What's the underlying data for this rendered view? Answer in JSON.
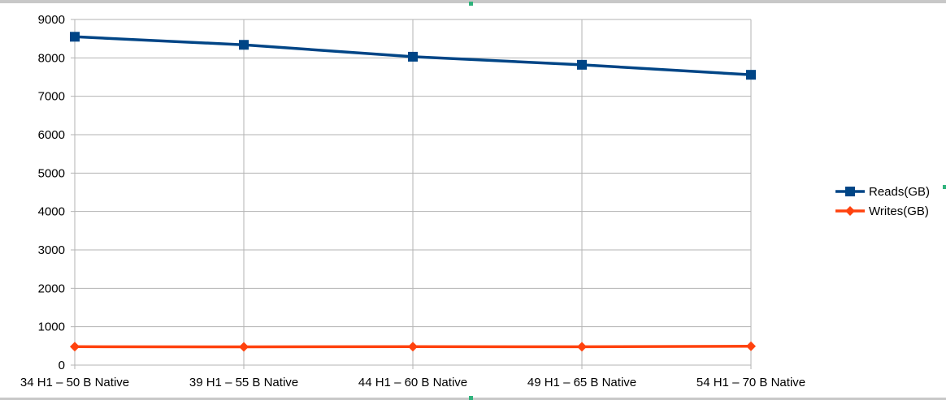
{
  "chart_data": {
    "type": "line",
    "categories": [
      "34 H1 – 50 B Native",
      "39 H1 – 55 B Native",
      "44 H1 – 60 B Native",
      "49 H1 – 65 B Native",
      "54 H1 – 70 B Native"
    ],
    "series": [
      {
        "name": "Reads(GB)",
        "values": [
          8550,
          8340,
          8030,
          7820,
          7560
        ],
        "color": "#004586",
        "marker": "square"
      },
      {
        "name": "Writes(GB)",
        "values": [
          480,
          475,
          480,
          478,
          490
        ],
        "color": "#ff420e",
        "marker": "diamond"
      }
    ],
    "yticks": [
      "0",
      "1000",
      "2000",
      "3000",
      "4000",
      "5000",
      "6000",
      "7000",
      "8000",
      "9000"
    ],
    "ylim": [
      0,
      9000
    ],
    "ystep": 1000,
    "grid": true,
    "legend_position": "right",
    "title": "",
    "xlabel": "",
    "ylabel": ""
  }
}
